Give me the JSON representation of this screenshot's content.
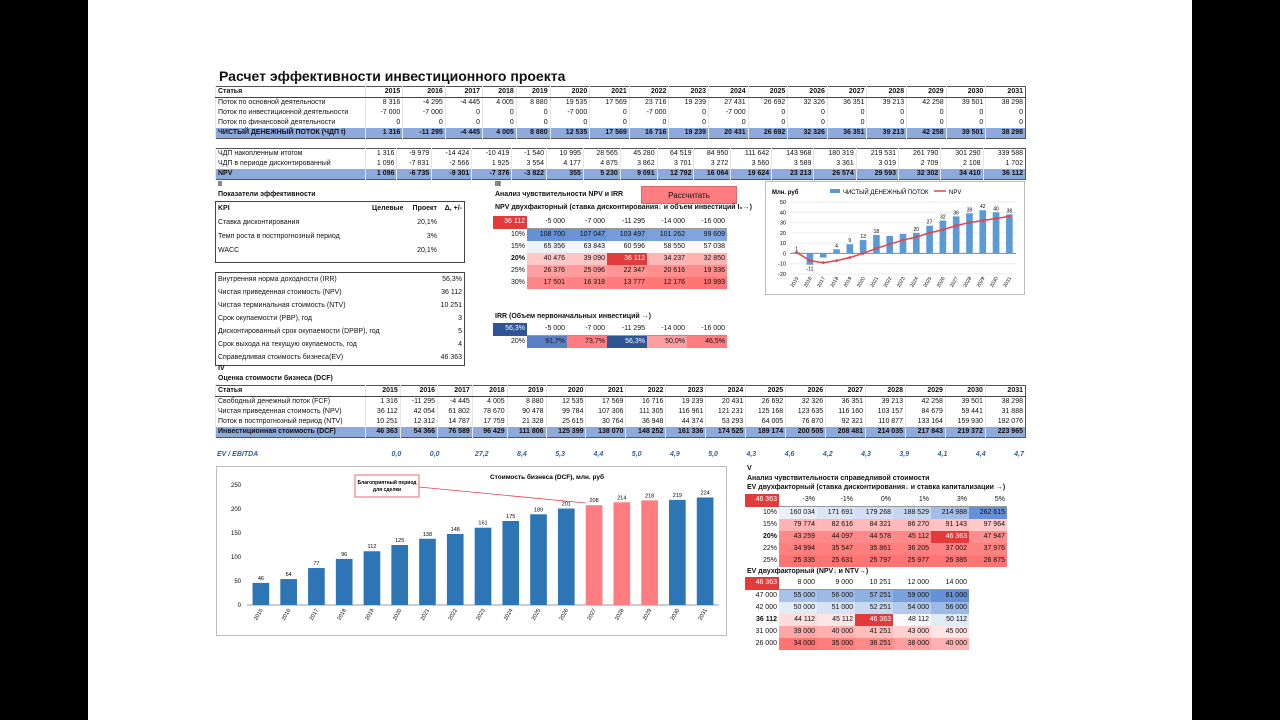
{
  "title": "Расчет эффективности инвестиционного проекта",
  "years": [
    "2015",
    "2016",
    "2017",
    "2018",
    "2019",
    "2020",
    "2021",
    "2022",
    "2023",
    "2024",
    "2025",
    "2026",
    "2027",
    "2028",
    "2029",
    "2030",
    "2031"
  ],
  "cf": {
    "head": "Статья",
    "rows": [
      {
        "label": "Поток по основной деятельности",
        "values": [
          "8 316",
          "-4 295",
          "-4 445",
          "4 005",
          "8 880",
          "19 535",
          "17 569",
          "23 716",
          "19 239",
          "27 431",
          "26 692",
          "32 326",
          "36 351",
          "39 213",
          "42 258",
          "39 501",
          "38 298"
        ]
      },
      {
        "label": "Поток по инвестиционной деятельности",
        "values": [
          "-7 000",
          "-7 000",
          "0",
          "0",
          "0",
          "-7 000",
          "0",
          "-7 000",
          "0",
          "-7 000",
          "0",
          "0",
          "0",
          "0",
          "0",
          "0",
          "0"
        ]
      },
      {
        "label": "Поток по финансовой деятельности",
        "values": [
          "0",
          "0",
          "0",
          "0",
          "0",
          "0",
          "0",
          "0",
          "0",
          "0",
          "0",
          "0",
          "0",
          "0",
          "0",
          "0",
          "0"
        ]
      }
    ],
    "total": {
      "label": "ЧИСТЫЙ ДЕНЕЖНЫЙ ПОТОК (ЧДП t)",
      "values": [
        "1 316",
        "-11 295",
        "-4 445",
        "4 005",
        "8 880",
        "12 535",
        "17 569",
        "16 716",
        "19 239",
        "20 431",
        "26 692",
        "32 326",
        "36 351",
        "39 213",
        "42 258",
        "39 501",
        "38 298"
      ]
    }
  },
  "npv": {
    "rows": [
      {
        "label": "ЧДП накопленным итогом",
        "values": [
          "1 316",
          "-9 979",
          "-14 424",
          "-10 419",
          "-1 540",
          "10 995",
          "28 565",
          "45 280",
          "64 519",
          "84 950",
          "111 642",
          "143 968",
          "180 319",
          "219 531",
          "261 790",
          "301 290",
          "339 588"
        ]
      },
      {
        "label": "ЧДП в периоде дисконтированный",
        "values": [
          "1 096",
          "-7 831",
          "-2 566",
          "1 925",
          "3 554",
          "4 177",
          "4 875",
          "3 862",
          "3 701",
          "3 272",
          "3 560",
          "3 589",
          "3 361",
          "3 019",
          "2 709",
          "2 108",
          "1 702"
        ]
      }
    ],
    "total": {
      "label": "NPV",
      "values": [
        "1 096",
        "-6 735",
        "-9 301",
        "-7 376",
        "-3 822",
        "355",
        "5 230",
        "9 091",
        "12 792",
        "16 064",
        "19 624",
        "23 213",
        "26 574",
        "29 593",
        "32 302",
        "34 410",
        "36 112"
      ]
    }
  },
  "sec2": {
    "roman": "II",
    "title": "Показатели эффективности",
    "kpi_head": [
      "KPI",
      "Целевые",
      "Проект",
      "Δ, +/-"
    ],
    "kpi": [
      {
        "label": "Ставка дисконтирования",
        "project": "20,1%"
      },
      {
        "label": "Темп роста в постпрогнозный период",
        "project": "3%"
      },
      {
        "label": "WACC",
        "project": "20,1%"
      }
    ],
    "results": [
      {
        "label": "Внутренняя норма доходности (IRR)",
        "value": "56,3%"
      },
      {
        "label": "Чистая приведенная стоимость (NPV)",
        "value": "36 112"
      },
      {
        "label": "Чистая терминальная стоимость (NTV)",
        "value": "10 251"
      },
      {
        "label": "Срок окупаемости (PBP), год",
        "value": "3"
      },
      {
        "label": "Дисконтированный срок окупаемости (DPBP), год",
        "value": "5"
      },
      {
        "label": "Срок выхода на текущую окупаемость, год",
        "value": "4"
      },
      {
        "label": "Справедливая стоимость бизнеса(EV)",
        "value": "46 363"
      }
    ]
  },
  "sec3": {
    "roman": "III",
    "title": "Анализ чувствительности  NPV и IRR",
    "button": "Рассчитать",
    "npv_title": "NPV двухфакторный (ставка дисконтирования↓ и объем инвестиций I₀→)",
    "npv_corner": "36 112",
    "npv_cols": [
      "-5 000",
      "-7 000",
      "-11 295",
      "-14 000",
      "-16 000"
    ],
    "npv_rows": [
      {
        "rate": "10%",
        "values": [
          "108 700",
          "107 047",
          "103 497",
          "101 262",
          "99 609"
        ]
      },
      {
        "rate": "15%",
        "values": [
          "65 356",
          "63 843",
          "60 596",
          "58 550",
          "57 038"
        ]
      },
      {
        "rate": "20%",
        "values": [
          "40 476",
          "39 090",
          "36 112",
          "34 237",
          "32 850"
        ]
      },
      {
        "rate": "25%",
        "values": [
          "26 376",
          "25 096",
          "22 347",
          "20 616",
          "19 336"
        ]
      },
      {
        "rate": "30%",
        "values": [
          "17 501",
          "16 318",
          "13 777",
          "12 176",
          "10 993"
        ]
      }
    ],
    "irr_title": "IRR (Объем первоначальных инвестиций →)",
    "irr_corner": "56,3%",
    "irr_cols": [
      "-5 000",
      "-7 000",
      "-11 295",
      "-14 000",
      "-16 000"
    ],
    "irr_row": {
      "rate": "20%",
      "values": [
        "91,7%",
        "73,7%",
        "56,3%",
        "50,0%",
        "46,5%"
      ]
    }
  },
  "sec4": {
    "roman": "IV",
    "title": "Оценка стоимости бизнеса (DCF)",
    "head": "Статья",
    "rows": [
      {
        "label": "Свободный денежный поток (FCF)",
        "values": [
          "1 316",
          "-11 295",
          "-4 445",
          "4 005",
          "8 880",
          "12 535",
          "17 569",
          "16 716",
          "19 239",
          "20 431",
          "26 692",
          "32 326",
          "36 351",
          "39 213",
          "42 258",
          "39 501",
          "38 298"
        ]
      },
      {
        "label": "Чистая приведенная стоимость (NPV)",
        "values": [
          "36 112",
          "42 054",
          "61 802",
          "78 670",
          "90 478",
          "99 784",
          "107 306",
          "111 305",
          "116 961",
          "121 231",
          "125 168",
          "123 635",
          "116 160",
          "103 157",
          "84 679",
          "59 441",
          "31 888"
        ]
      },
      {
        "label": "Поток в постпрогнозный период (NTV)",
        "values": [
          "10 251",
          "12 312",
          "14 787",
          "17 759",
          "21 328",
          "25 615",
          "30 764",
          "36 948",
          "44 374",
          "53 293",
          "64 005",
          "76 870",
          "92 321",
          "110 877",
          "133 164",
          "159 930",
          "192 076"
        ]
      }
    ],
    "total": {
      "label": "Инвестиционная стоимость (DCF)",
      "values": [
        "46 363",
        "54 366",
        "76 589",
        "96 429",
        "111 806",
        "125 399",
        "138 070",
        "148 252",
        "161 336",
        "174 525",
        "189 174",
        "200 505",
        "208 481",
        "214 035",
        "217 843",
        "219 372",
        "223 965"
      ]
    },
    "ev_label": "EV / EBITDA",
    "ev": [
      "0,0",
      "0,0",
      "27,2",
      "8,4",
      "5,3",
      "4,4",
      "5,0",
      "4,9",
      "5,0",
      "4,3",
      "4,6",
      "4,2",
      "4,3",
      "3,9",
      "4,1",
      "4,4",
      "4,7"
    ]
  },
  "chart_npv": {
    "type": "bar+line",
    "unit": "Млн. руб",
    "series_bar": "ЧИСТЫЙ ДЕНЕЖНЫЙ ПОТОК",
    "series_line": "NPV",
    "categories": [
      "2015",
      "2016",
      "2017",
      "2018",
      "2019",
      "2020",
      "2021",
      "2022",
      "2023",
      "2024",
      "2025",
      "2026",
      "2027",
      "2028",
      "2029",
      "2030",
      "2031"
    ],
    "bars": [
      1,
      -11,
      -4,
      4,
      9,
      13,
      18,
      17,
      19,
      20,
      27,
      32,
      36,
      39,
      42,
      40,
      38
    ],
    "bar_labels": [
      "1",
      "-11",
      "-4",
      "4",
      "9",
      "13",
      "18",
      "17",
      "19",
      "20",
      "27",
      "32",
      "36",
      "39",
      "42",
      "40",
      "38"
    ],
    "labeled": [
      1,
      1,
      0,
      1,
      1,
      1,
      1,
      0,
      0,
      1,
      1,
      1,
      1,
      1,
      1,
      1,
      1
    ],
    "line": [
      1,
      -7,
      -9,
      -7,
      -4,
      0,
      5,
      9,
      13,
      16,
      20,
      23,
      27,
      30,
      32,
      34,
      36
    ],
    "yticks": [
      "50",
      "40",
      "30",
      "20",
      "10",
      "0",
      "-10",
      "-20"
    ],
    "ylim": [
      -20,
      50
    ]
  },
  "chart_dcf": {
    "type": "bar",
    "title": "Стоимость бизнеса (DCF), млн. руб",
    "annotation": "Благоприятный период для сделки",
    "categories": [
      "2015",
      "2016",
      "2017",
      "2018",
      "2019",
      "2020",
      "2021",
      "2022",
      "2023",
      "2024",
      "2025",
      "2026",
      "2027",
      "2028",
      "2029",
      "2030",
      "2031"
    ],
    "values": [
      46,
      54,
      77,
      96,
      112,
      125,
      138,
      148,
      161,
      175,
      189,
      201,
      208,
      214,
      218,
      219,
      224
    ],
    "highlight": [
      0,
      0,
      0,
      0,
      0,
      0,
      0,
      0,
      0,
      0,
      0,
      0,
      1,
      1,
      1,
      0,
      0
    ],
    "yticks": [
      "250",
      "200",
      "150",
      "100",
      "50",
      "0"
    ],
    "ylim": [
      0,
      250
    ],
    "colors": {
      "normal": "#2e75b6",
      "highlight": "#ff7c80"
    }
  },
  "sec5": {
    "roman": "V",
    "title": "Анализ чувствительности справедливой стоимости",
    "ev2_title": "EV двухфакторный (ставка дисконтирования↓ и ставка капитализации →)",
    "ev2_corner": "46 363",
    "ev2_cols": [
      "-3%",
      "-1%",
      "0%",
      "1%",
      "3%",
      "5%"
    ],
    "ev2_rows": [
      {
        "rate": "10%",
        "values": [
          "160 034",
          "171 691",
          "179 268",
          "188 529",
          "214 988",
          "262 615"
        ]
      },
      {
        "rate": "15%",
        "values": [
          "79 774",
          "82 616",
          "84 321",
          "86 270",
          "91 143",
          "97 964"
        ]
      },
      {
        "rate": "20%",
        "values": [
          "43 259",
          "44 097",
          "44 578",
          "45 112",
          "46 363",
          "47 947"
        ]
      },
      {
        "rate": "22%",
        "values": [
          "34 994",
          "35 547",
          "35 861",
          "36 205",
          "37 002",
          "37 976"
        ]
      },
      {
        "rate": "25%",
        "values": [
          "25 335",
          "25 631",
          "25 797",
          "25 977",
          "26 385",
          "26 875"
        ]
      }
    ],
    "ev3_title": "EV двухфакторный (NPV↓ и NTV→)",
    "ev3_corner": "46 363",
    "ev3_cols": [
      "8 000",
      "9 000",
      "10 251",
      "12 000",
      "14 000"
    ],
    "ev3_rows": [
      {
        "rate": "47 000",
        "values": [
          "55 000",
          "56 000",
          "57 251",
          "59 000",
          "61 000"
        ]
      },
      {
        "rate": "42 000",
        "values": [
          "50 000",
          "51 000",
          "52 251",
          "54 000",
          "56 000"
        ]
      },
      {
        "rate": "36 112",
        "values": [
          "44 112",
          "45 112",
          "46 363",
          "48 112",
          "50 112"
        ]
      },
      {
        "rate": "31 000",
        "values": [
          "39 000",
          "40 000",
          "41 251",
          "43 000",
          "45 000"
        ]
      },
      {
        "rate": "26 000",
        "values": [
          "34 000",
          "35 000",
          "36 251",
          "38 000",
          "40 000"
        ]
      }
    ]
  }
}
